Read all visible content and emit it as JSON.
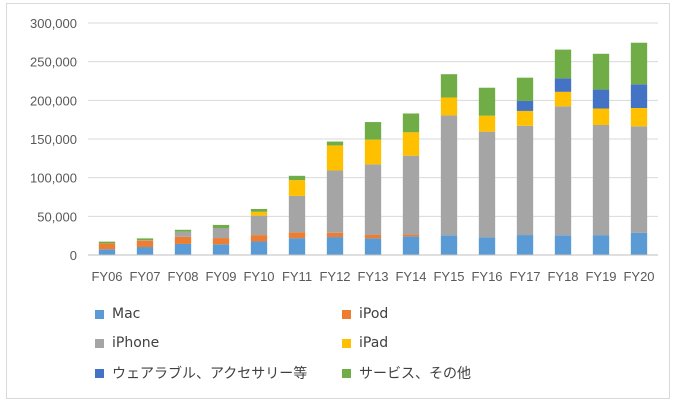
{
  "chart_data": {
    "type": "bar",
    "stacked": true,
    "categories": [
      "FY06",
      "FY07",
      "FY08",
      "FY09",
      "FY10",
      "FY11",
      "FY12",
      "FY13",
      "FY14",
      "FY15",
      "FY16",
      "FY17",
      "FY18",
      "FY19",
      "FY20"
    ],
    "series": [
      {
        "name": "Mac",
        "color": "#5B9BD5",
        "values": [
          7400,
          10300,
          14300,
          13800,
          17500,
          21800,
          23200,
          21500,
          24100,
          25500,
          22800,
          25800,
          25500,
          25700,
          28600
        ]
      },
      {
        "name": "iPod",
        "color": "#ED7D31",
        "values": [
          7700,
          8300,
          9200,
          8100,
          8200,
          7500,
          5600,
          4400,
          2300,
          0,
          0,
          0,
          0,
          0,
          0
        ]
      },
      {
        "name": "iPhone",
        "color": "#A5A5A5",
        "values": [
          0,
          600,
          6700,
          13000,
          25200,
          47100,
          80500,
          91300,
          102000,
          155000,
          136700,
          141300,
          166700,
          142400,
          137800
        ]
      },
      {
        "name": "iPad",
        "color": "#FFC000",
        "values": [
          0,
          0,
          0,
          0,
          5000,
          20400,
          32400,
          32000,
          30300,
          23200,
          20600,
          19200,
          18800,
          21300,
          23700
        ]
      },
      {
        "name": "ウェアラブル、アクセサリー等",
        "color": "#4472C4",
        "values": [
          0,
          0,
          0,
          0,
          0,
          0,
          0,
          0,
          0,
          0,
          0,
          12900,
          17400,
          24500,
          30600
        ]
      },
      {
        "name": "サービス、その他",
        "color": "#70AD47",
        "values": [
          2200,
          2300,
          2400,
          4000,
          3600,
          5600,
          5000,
          22700,
          24300,
          30100,
          36200,
          30100,
          37200,
          46300,
          53800
        ]
      }
    ],
    "y_ticks": [
      "0",
      "50,000",
      "100,000",
      "150,000",
      "200,000",
      "250,000",
      "300,000"
    ],
    "ylim": [
      0,
      300000
    ],
    "y_tick_step": 50000,
    "grid": true,
    "legend_position": "bottom"
  }
}
